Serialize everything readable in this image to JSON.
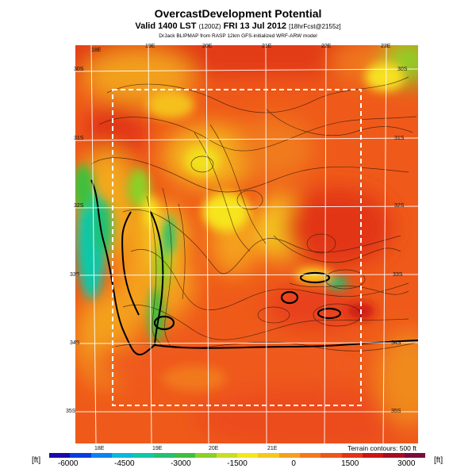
{
  "header": {
    "title": "OvercastDevelopment Potential",
    "valid_main": "Valid 1400 LST",
    "valid_utc": "(1200Z)",
    "valid_date": "FRI 13 Jul 2012",
    "forecast_info": "[18hrFcst@2155z]",
    "credit": "DrJack BLIPMAP from RASP 12km GFS-initialized WRF-ARW model"
  },
  "map": {
    "lon_labels_top": [
      "18E",
      "19E",
      "20E",
      "21E",
      "22E",
      "23E"
    ],
    "lon_labels_bottom": [
      "18E",
      "19E",
      "20E",
      "21E"
    ],
    "lat_labels_left": [
      "30S",
      "31S",
      "32S",
      "33S",
      "34S",
      "35S"
    ],
    "lat_labels_right": [
      "30S",
      "31S",
      "32S",
      "33S",
      "34S",
      "35S"
    ],
    "terrain_note": "Terrain contours: 500 ft"
  },
  "colorbar": {
    "unit_left": "[ft]",
    "unit_right": "[ft]",
    "min": -6500,
    "max": 3500,
    "tick_labels": [
      "-6000",
      "-4500",
      "-3000",
      "-1500",
      "0",
      "1500",
      "3000"
    ],
    "tick_values": [
      -6000,
      -4500,
      -3000,
      -1500,
      0,
      1500,
      3000
    ],
    "colors": [
      "#1a0aa8",
      "#0a3ce0",
      "#0b82f0",
      "#0bb7dc",
      "#10c8a8",
      "#22c070",
      "#3ec03c",
      "#8cd028",
      "#c8de24",
      "#f5e61e",
      "#f6c81e",
      "#f5a01e",
      "#f2781c",
      "#ec561a",
      "#e23416",
      "#cc1414",
      "#a80c22",
      "#7a0c3c"
    ]
  }
}
